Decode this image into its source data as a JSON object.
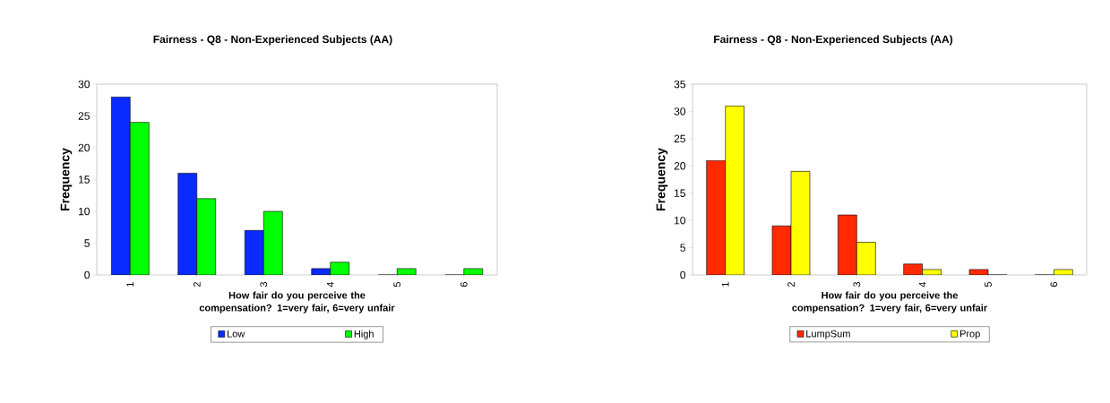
{
  "chart_data": [
    {
      "type": "bar",
      "title": "Fairness - Q8 - Non-Experienced Subjects (AA)",
      "xlabel": "How fair do you perceive the compensation? 1=very fair, 6=very unfair",
      "ylabel": "Frequency",
      "categories": [
        "1",
        "2",
        "3",
        "4",
        "5",
        "6"
      ],
      "ylim": [
        0,
        30
      ],
      "yticks": [
        0,
        5,
        10,
        15,
        20,
        25,
        30
      ],
      "legend": "bottom",
      "series": [
        {
          "name": "Low",
          "color": "#0a2aff",
          "values": [
            28,
            16,
            7,
            1,
            0,
            0
          ]
        },
        {
          "name": "High",
          "color": "#00ff00",
          "values": [
            24,
            12,
            10,
            2,
            1,
            1
          ]
        }
      ]
    },
    {
      "type": "bar",
      "title": "Fairness - Q8 - Non-Experienced Subjects (AA)",
      "xlabel": "How fair do you perceive the compensation? 1=very fair, 6=very unfair",
      "ylabel": "Frequency",
      "categories": [
        "1",
        "2",
        "3",
        "4",
        "5",
        "6"
      ],
      "ylim": [
        0,
        35
      ],
      "yticks": [
        0,
        5,
        10,
        15,
        20,
        25,
        30,
        35
      ],
      "legend": "bottom",
      "series": [
        {
          "name": "LumpSum",
          "color": "#ff2a00",
          "values": [
            21,
            9,
            11,
            2,
            1,
            0
          ]
        },
        {
          "name": "Prop",
          "color": "#ffff00",
          "values": [
            31,
            19,
            6,
            1,
            0,
            1
          ]
        }
      ]
    }
  ]
}
